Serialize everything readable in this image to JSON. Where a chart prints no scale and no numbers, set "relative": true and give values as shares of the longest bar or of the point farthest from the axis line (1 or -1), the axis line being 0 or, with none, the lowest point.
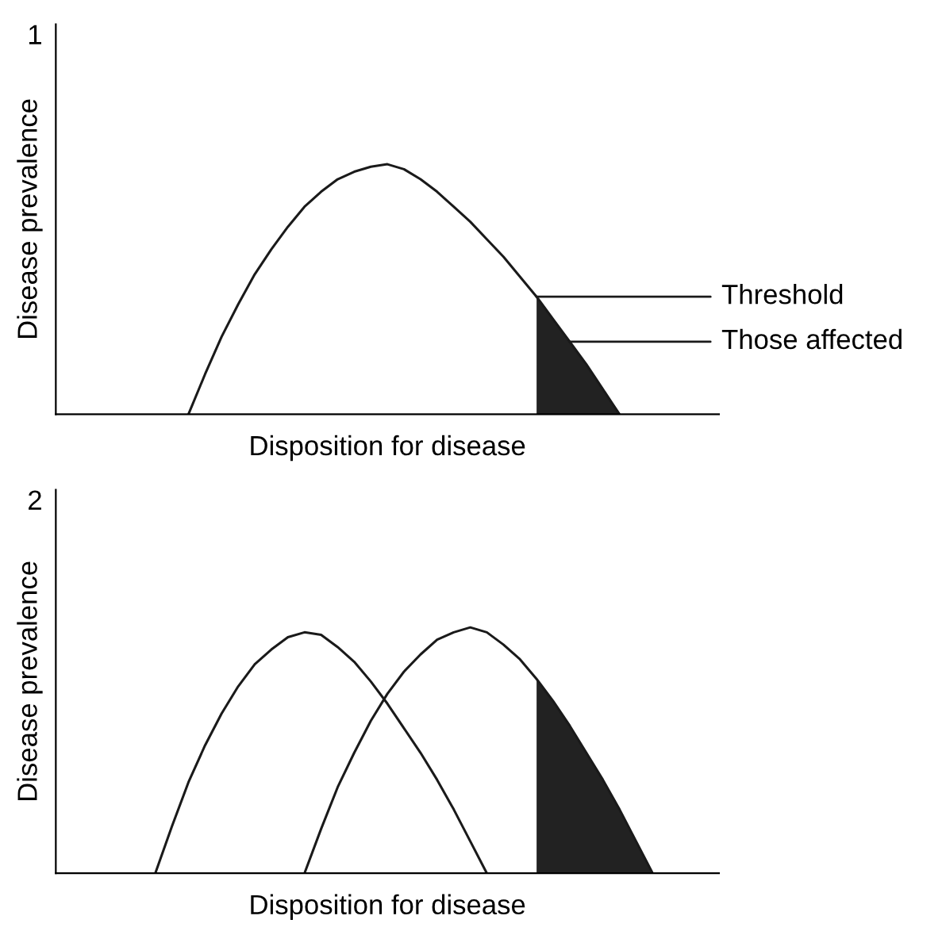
{
  "chart_data": [
    {
      "type": "line",
      "title": "1",
      "xlabel": "Disposition for disease",
      "ylabel": "Disease prevalence",
      "relative": true,
      "categories": [
        null,
        null,
        null,
        null,
        null,
        null,
        null,
        null,
        null,
        null,
        null,
        null,
        null,
        null,
        null,
        null,
        null,
        null,
        null,
        null,
        null,
        null,
        null,
        null,
        null,
        null,
        null,
        null,
        null,
        null,
        null,
        null,
        null,
        null,
        null,
        null,
        null,
        null,
        null,
        null,
        null
      ],
      "series": [
        {
          "color": "#1a1a1a",
          "values": [
            null,
            null,
            null,
            null,
            null,
            null,
            null,
            null,
            0,
            0.16,
            0.31,
            0.44,
            0.56,
            0.66,
            0.75,
            0.83,
            0.89,
            0.94,
            0.97,
            0.99,
            1,
            0.98,
            0.94,
            0.89,
            0.83,
            0.77,
            0.7,
            0.63,
            0.55,
            0.47,
            0.38,
            0.29,
            0.2,
            0.1,
            0,
            null,
            null,
            null,
            null,
            null,
            null
          ]
        },
        {
          "type": "area",
          "color": "#222222",
          "values": [
            null,
            null,
            null,
            null,
            null,
            null,
            null,
            null,
            null,
            null,
            null,
            null,
            null,
            null,
            null,
            null,
            null,
            null,
            null,
            null,
            null,
            null,
            null,
            null,
            null,
            null,
            null,
            null,
            null,
            0.47,
            0.38,
            0.29,
            0.2,
            0.1,
            0,
            null,
            null,
            null,
            null,
            null,
            null
          ]
        }
      ],
      "annotations": [
        "Threshold",
        "Those affected"
      ]
    },
    {
      "type": "line",
      "title": "2",
      "xlabel": "Disposition for disease",
      "ylabel": "Disease prevalence",
      "relative": true,
      "categories": [
        null,
        null,
        null,
        null,
        null,
        null,
        null,
        null,
        null,
        null,
        null,
        null,
        null,
        null,
        null,
        null,
        null,
        null,
        null,
        null,
        null,
        null,
        null,
        null,
        null,
        null,
        null,
        null,
        null,
        null,
        null,
        null,
        null,
        null,
        null,
        null,
        null,
        null,
        null,
        null,
        null
      ],
      "series": [
        {
          "color": "#1a1a1a",
          "values": [
            null,
            null,
            null,
            null,
            null,
            null,
            0,
            0.19,
            0.37,
            0.52,
            0.65,
            0.76,
            0.85,
            0.91,
            0.96,
            0.98,
            0.97,
            0.92,
            0.86,
            0.78,
            0.69,
            0.59,
            0.49,
            0.38,
            0.26,
            0.13,
            0,
            null,
            null,
            null,
            null,
            null,
            null,
            null,
            null,
            null,
            null,
            null,
            null,
            null,
            null
          ]
        },
        {
          "color": "#1a1a1a",
          "values": [
            null,
            null,
            null,
            null,
            null,
            null,
            null,
            null,
            null,
            null,
            null,
            null,
            null,
            null,
            null,
            0,
            0.18,
            0.35,
            0.49,
            0.62,
            0.73,
            0.82,
            0.89,
            0.95,
            0.98,
            1.0,
            0.98,
            0.93,
            0.87,
            0.79,
            0.7,
            0.6,
            0.49,
            0.38,
            0.26,
            0.13,
            0,
            null,
            null,
            null,
            null
          ]
        },
        {
          "type": "area",
          "color": "#222222",
          "values": [
            null,
            null,
            null,
            null,
            null,
            null,
            null,
            null,
            null,
            null,
            null,
            null,
            null,
            null,
            null,
            null,
            null,
            null,
            null,
            null,
            null,
            null,
            null,
            null,
            null,
            null,
            null,
            null,
            null,
            0.79,
            0.7,
            0.6,
            0.49,
            0.38,
            0.26,
            0.13,
            0,
            null,
            null,
            null,
            null
          ]
        }
      ]
    }
  ]
}
